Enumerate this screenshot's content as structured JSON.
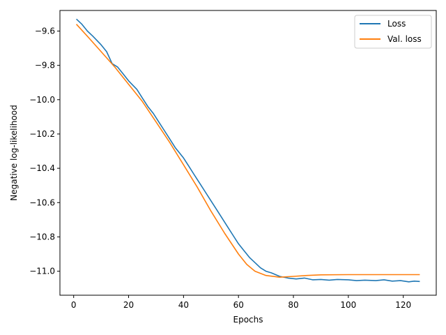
{
  "chart_data": {
    "type": "line",
    "title": "",
    "xlabel": "Epochs",
    "ylabel": "Negative log-likelihood",
    "xlim": [
      -5,
      132
    ],
    "ylim": [
      -11.14,
      -9.48
    ],
    "x_ticks": [
      0,
      20,
      40,
      60,
      80,
      100,
      120
    ],
    "x_tick_labels": [
      "0",
      "20",
      "40",
      "60",
      "80",
      "100",
      "120"
    ],
    "y_ticks": [
      -9.6,
      -9.8,
      -10.0,
      -10.2,
      -10.4,
      -10.6,
      -10.8,
      -11.0
    ],
    "y_tick_labels": [
      "−9.6",
      "−9.8",
      "−10.0",
      "−10.2",
      "−10.4",
      "−10.6",
      "−10.8",
      "−11.0"
    ],
    "grid": false,
    "legend_position": "top-right",
    "series": [
      {
        "name": "Loss",
        "color": "#1f77b4",
        "points": [
          [
            1,
            -9.53
          ],
          [
            3,
            -9.56
          ],
          [
            5,
            -9.6
          ],
          [
            7,
            -9.63
          ],
          [
            10,
            -9.68
          ],
          [
            12,
            -9.72
          ],
          [
            14,
            -9.79
          ],
          [
            16,
            -9.81
          ],
          [
            18,
            -9.85
          ],
          [
            20,
            -9.89
          ],
          [
            23,
            -9.94
          ],
          [
            25,
            -9.99
          ],
          [
            27,
            -10.04
          ],
          [
            29,
            -10.08
          ],
          [
            31,
            -10.13
          ],
          [
            33,
            -10.18
          ],
          [
            35,
            -10.23
          ],
          [
            37,
            -10.28
          ],
          [
            40,
            -10.34
          ],
          [
            42,
            -10.39
          ],
          [
            44,
            -10.44
          ],
          [
            46,
            -10.49
          ],
          [
            48,
            -10.54
          ],
          [
            50,
            -10.59
          ],
          [
            52,
            -10.64
          ],
          [
            54,
            -10.69
          ],
          [
            56,
            -10.74
          ],
          [
            58,
            -10.79
          ],
          [
            60,
            -10.84
          ],
          [
            62,
            -10.88
          ],
          [
            64,
            -10.92
          ],
          [
            66,
            -10.95
          ],
          [
            68,
            -10.98
          ],
          [
            70,
            -11.0
          ],
          [
            72,
            -11.01
          ],
          [
            75,
            -11.03
          ],
          [
            78,
            -11.04
          ],
          [
            81,
            -11.045
          ],
          [
            84,
            -11.04
          ],
          [
            87,
            -11.05
          ],
          [
            90,
            -11.048
          ],
          [
            93,
            -11.052
          ],
          [
            96,
            -11.048
          ],
          [
            100,
            -11.05
          ],
          [
            103,
            -11.055
          ],
          [
            106,
            -11.052
          ],
          [
            110,
            -11.055
          ],
          [
            113,
            -11.05
          ],
          [
            116,
            -11.058
          ],
          [
            119,
            -11.055
          ],
          [
            122,
            -11.062
          ],
          [
            124,
            -11.058
          ],
          [
            126,
            -11.06
          ]
        ]
      },
      {
        "name": "Val. loss",
        "color": "#ff7f0e",
        "points": [
          [
            1,
            -9.56
          ],
          [
            5,
            -9.63
          ],
          [
            10,
            -9.72
          ],
          [
            15,
            -9.81
          ],
          [
            20,
            -9.91
          ],
          [
            25,
            -10.01
          ],
          [
            30,
            -10.13
          ],
          [
            35,
            -10.25
          ],
          [
            40,
            -10.38
          ],
          [
            45,
            -10.51
          ],
          [
            50,
            -10.65
          ],
          [
            55,
            -10.78
          ],
          [
            60,
            -10.9
          ],
          [
            63,
            -10.96
          ],
          [
            66,
            -11.0
          ],
          [
            70,
            -11.025
          ],
          [
            75,
            -11.035
          ],
          [
            80,
            -11.03
          ],
          [
            85,
            -11.025
          ],
          [
            90,
            -11.021
          ],
          [
            100,
            -11.02
          ],
          [
            110,
            -11.02
          ],
          [
            120,
            -11.02
          ],
          [
            126,
            -11.02
          ]
        ]
      }
    ]
  }
}
